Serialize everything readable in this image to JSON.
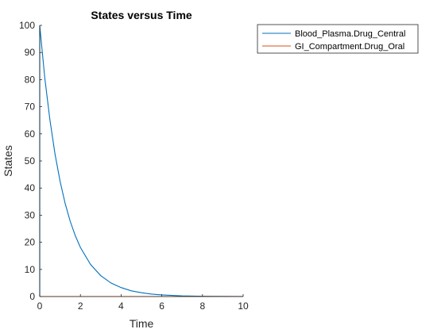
{
  "chart_data": {
    "type": "line",
    "title": "States versus Time",
    "xlabel": "Time",
    "ylabel": "States",
    "xlim": [
      0,
      10
    ],
    "ylim": [
      0,
      100
    ],
    "xticks": [
      0,
      2,
      4,
      6,
      8,
      10
    ],
    "yticks": [
      0,
      10,
      20,
      30,
      40,
      50,
      60,
      70,
      80,
      90,
      100
    ],
    "grid": false,
    "legend_position": "outside-top-right",
    "series": [
      {
        "name": "Blood_Plasma.Drug_Central",
        "color": "#0072BD",
        "x": [
          0,
          0,
          0.25,
          0.5,
          0.75,
          1,
          1.25,
          1.5,
          1.75,
          2,
          2.5,
          3,
          3.5,
          4,
          4.5,
          5,
          5.5,
          6,
          7,
          8,
          9,
          10
        ],
        "y": [
          0,
          100,
          80.5,
          65.2,
          52.6,
          42.5,
          34.3,
          27.7,
          22.4,
          18.1,
          11.8,
          7.7,
          5.0,
          3.3,
          2.1,
          1.4,
          0.9,
          0.6,
          0.25,
          0.1,
          0.04,
          0.02
        ]
      },
      {
        "name": "GI_Compartment.Drug_Oral",
        "color": "#D95319",
        "x": [
          0,
          10
        ],
        "y": [
          0,
          0
        ]
      }
    ]
  }
}
